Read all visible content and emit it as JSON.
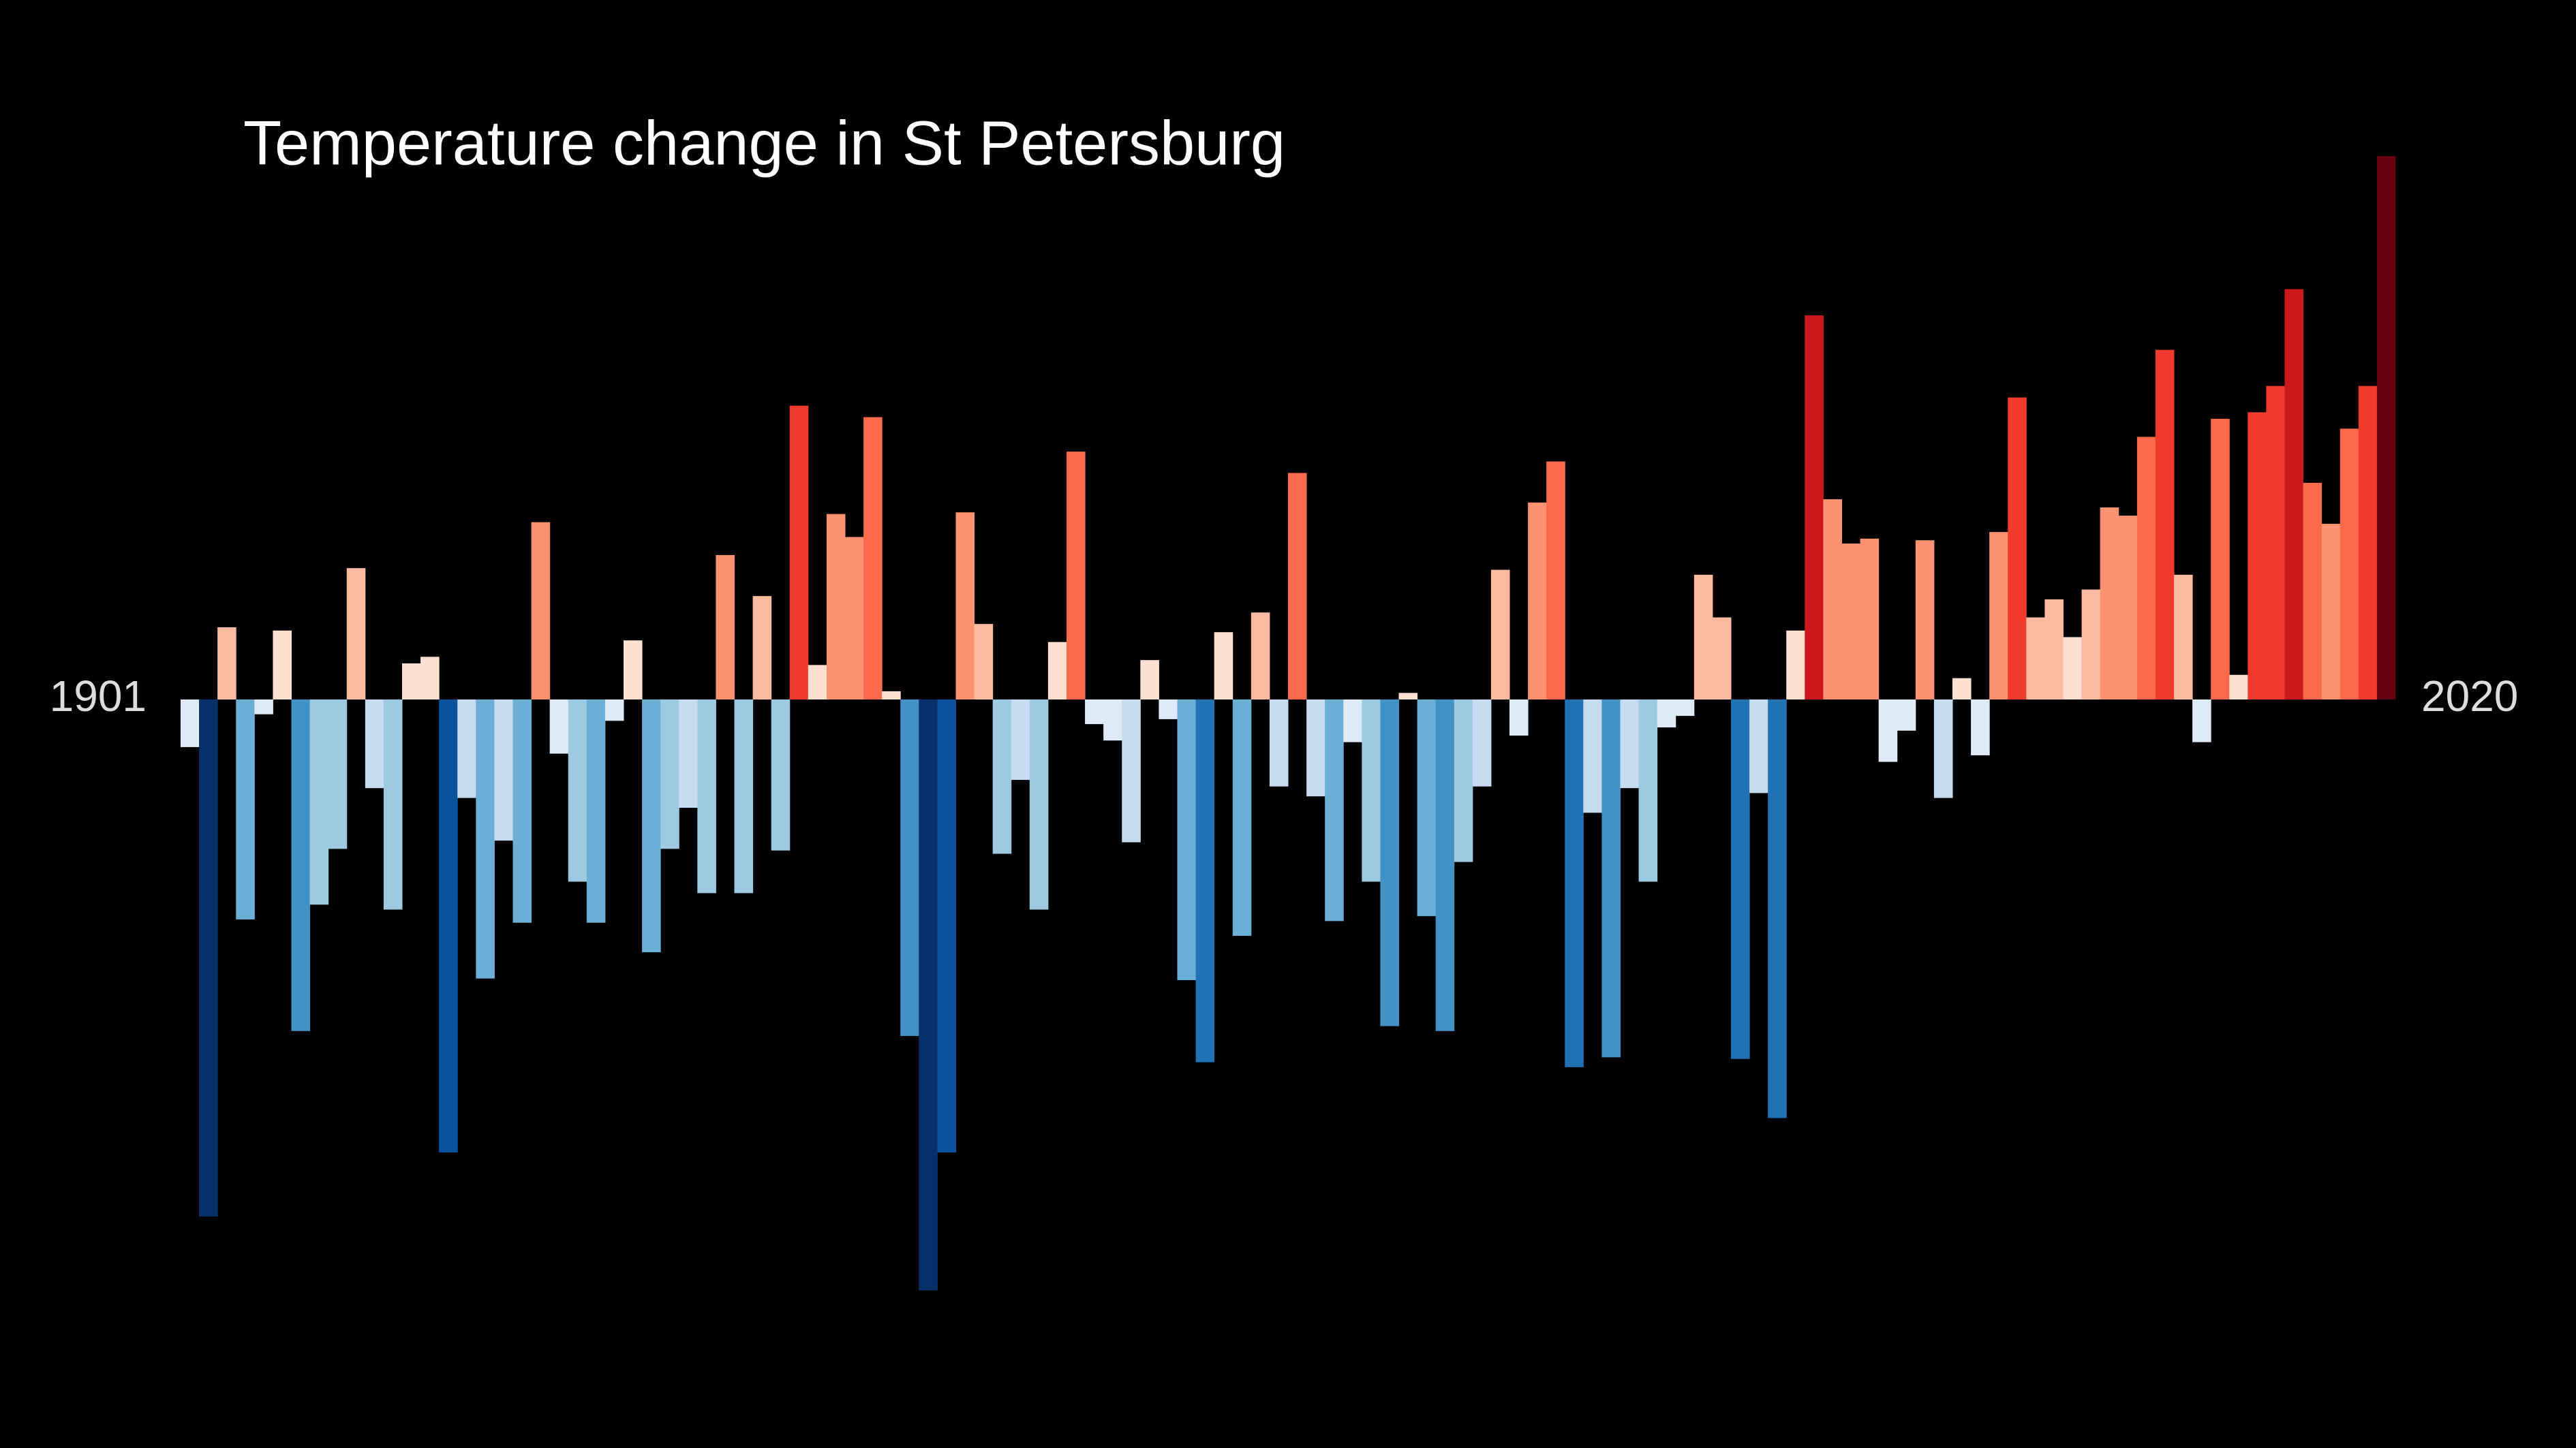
{
  "chart_data": {
    "type": "bar",
    "title": "Temperature change in St Petersburg",
    "categories": [
      "1901",
      null,
      null,
      null,
      null,
      null,
      null,
      null,
      null,
      null,
      null,
      null,
      null,
      null,
      null,
      null,
      null,
      null,
      null,
      null,
      null,
      null,
      null,
      null,
      null,
      null,
      null,
      null,
      null,
      null,
      null,
      null,
      null,
      null,
      null,
      null,
      null,
      null,
      null,
      null,
      null,
      null,
      null,
      null,
      null,
      null,
      null,
      null,
      null,
      null,
      null,
      null,
      null,
      null,
      null,
      null,
      null,
      null,
      null,
      null,
      null,
      null,
      null,
      null,
      null,
      null,
      null,
      null,
      null,
      null,
      null,
      null,
      null,
      null,
      null,
      null,
      null,
      null,
      null,
      null,
      null,
      null,
      null,
      null,
      null,
      null,
      null,
      null,
      null,
      null,
      null,
      null,
      null,
      null,
      null,
      null,
      null,
      null,
      null,
      null,
      null,
      null,
      null,
      null,
      null,
      null,
      null,
      null,
      null,
      null,
      null,
      null,
      null,
      null,
      null,
      null,
      null,
      null,
      null,
      "2020"
    ],
    "values": [
      -0.29,
      -3.15,
      0.44,
      -1.34,
      -0.09,
      0.42,
      -2.02,
      -1.25,
      -0.91,
      0.8,
      -0.54,
      -1.28,
      0.22,
      0.26,
      -2.76,
      -0.6,
      -1.7,
      -0.86,
      -1.36,
      1.08,
      -0.33,
      -1.11,
      -1.36,
      -0.13,
      0.36,
      -1.54,
      -0.91,
      -0.66,
      -1.18,
      0.88,
      -1.18,
      0.63,
      -0.92,
      1.79,
      0.21,
      1.13,
      0.99,
      1.72,
      0.05,
      -2.05,
      -3.6,
      -2.76,
      1.14,
      0.46,
      -0.94,
      -0.49,
      -1.28,
      0.35,
      1.51,
      -0.15,
      -0.25,
      -0.87,
      0.24,
      -0.12,
      -1.71,
      -2.21,
      0.41,
      -1.44,
      0.53,
      -0.53,
      1.38,
      -0.59,
      -1.35,
      -0.26,
      -1.11,
      -1.99,
      0.04,
      -1.32,
      -2.02,
      -0.99,
      -0.53,
      0.79,
      -0.22,
      1.2,
      1.45,
      -2.24,
      -0.69,
      -2.18,
      -0.54,
      -1.11,
      -0.17,
      -0.1,
      0.76,
      0.5,
      -2.19,
      -0.57,
      -2.55,
      0.42,
      2.34,
      1.22,
      0.95,
      0.98,
      -0.38,
      -0.19,
      0.97,
      -0.6,
      0.13,
      -0.34,
      1.02,
      1.84,
      0.5,
      0.61,
      0.38,
      0.67,
      1.17,
      1.12,
      1.6,
      2.13,
      0.76,
      -0.26,
      1.71,
      0.15,
      1.75,
      1.91,
      2.5,
      1.32,
      1.07,
      1.65,
      1.91,
      3.31
    ],
    "ylim": [
      -4,
      4
    ],
    "colormap": [
      "#08306b",
      "#08519c",
      "#2171b5",
      "#4292c6",
      "#6baed6",
      "#9ecae1",
      "#c6dbef",
      "#deebf7",
      "#fee0d2",
      "#fcbba1",
      "#fc9272",
      "#fb6a4a",
      "#ef3b2c",
      "#cb181d",
      "#a50f15",
      "#67000d"
    ],
    "color_lim": [
      -3.5,
      3.5
    ]
  }
}
